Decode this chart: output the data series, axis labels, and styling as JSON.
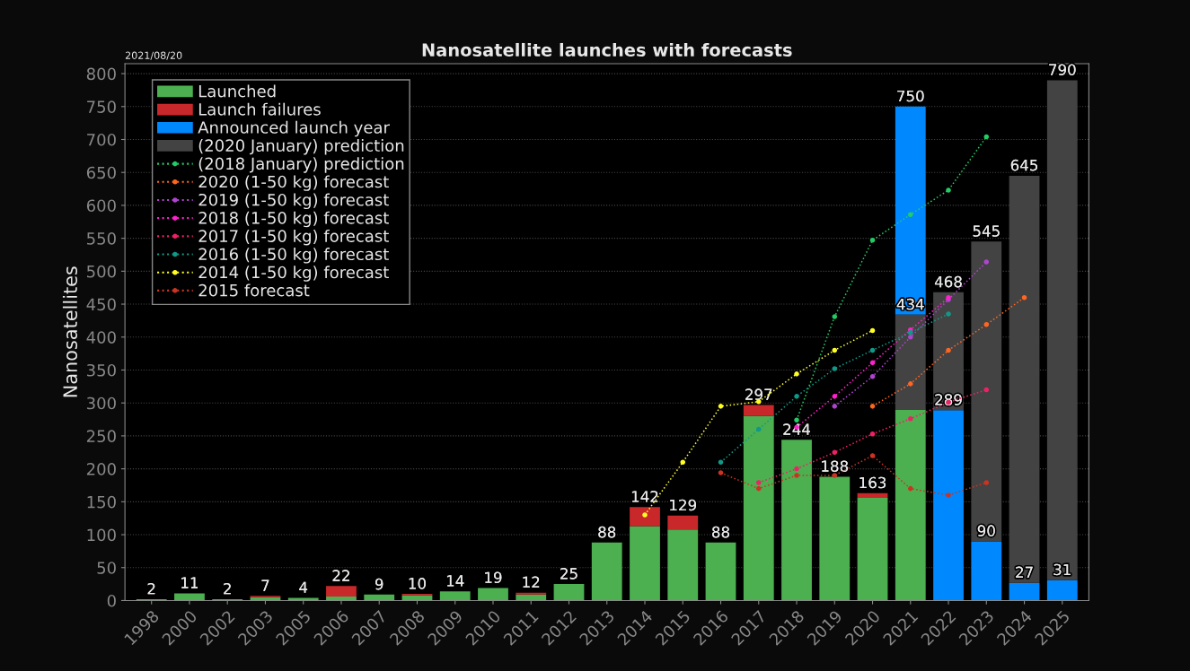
{
  "chart_data": {
    "type": "bar",
    "title": "Nanosatellite launches with forecasts",
    "ylabel": "Nanosatellites",
    "annotations": [
      "2021/08/20"
    ],
    "categories": [
      "1998",
      "2000",
      "2002",
      "2003",
      "2005",
      "2006",
      "2007",
      "2008",
      "2009",
      "2010",
      "2011",
      "2012",
      "2013",
      "2014",
      "2015",
      "2016",
      "2017",
      "2018",
      "2019",
      "2020",
      "2021",
      "2022",
      "2023",
      "2024",
      "2025"
    ],
    "ylim": [
      0,
      815
    ],
    "yticks": [
      0,
      50,
      100,
      150,
      200,
      250,
      300,
      350,
      400,
      450,
      500,
      550,
      600,
      650,
      700,
      750,
      800
    ],
    "grid": "y",
    "legend": "top left",
    "series": [
      {
        "name": "Launched",
        "color": "#4caf50",
        "values": [
          2,
          11,
          2,
          5,
          4,
          6,
          9,
          8,
          14,
          19,
          9,
          25,
          88,
          113,
          108,
          88,
          280,
          244,
          188,
          156,
          290,
          null,
          null,
          null,
          null
        ],
        "base": [
          0,
          0,
          0,
          0,
          0,
          0,
          0,
          0,
          0,
          0,
          0,
          0,
          0,
          0,
          0,
          0,
          0,
          0,
          0,
          0,
          0,
          null,
          null,
          null,
          null
        ],
        "value_labels": [
          "2",
          "11",
          "2",
          null,
          "4",
          null,
          "9",
          null,
          "14",
          "19",
          null,
          "25",
          "88",
          null,
          null,
          "88",
          null,
          "244",
          "188",
          null,
          null,
          null,
          null,
          null,
          null
        ]
      },
      {
        "name": "Launch failures",
        "color": "#c8282a",
        "values": [
          null,
          null,
          null,
          2,
          null,
          16,
          null,
          2,
          null,
          null,
          3,
          null,
          null,
          29,
          21,
          null,
          17,
          null,
          null,
          7,
          null,
          null,
          null,
          null,
          null
        ],
        "base": [
          null,
          null,
          null,
          5,
          null,
          6,
          null,
          8,
          null,
          null,
          9,
          null,
          null,
          113,
          108,
          null,
          280,
          null,
          null,
          156,
          null,
          null,
          null,
          null,
          null
        ],
        "value_labels": [
          null,
          null,
          null,
          "7",
          null,
          "22",
          null,
          "10",
          null,
          null,
          "12",
          null,
          null,
          "142",
          "129",
          null,
          "297",
          null,
          null,
          "163",
          null,
          null,
          null,
          null,
          null
        ]
      },
      {
        "name": "Announced launch year",
        "color": "#0088ff",
        "values": [
          null,
          null,
          null,
          null,
          null,
          null,
          null,
          null,
          null,
          null,
          null,
          null,
          null,
          null,
          null,
          null,
          null,
          null,
          null,
          null,
          316,
          289,
          90,
          27,
          31
        ],
        "base": [
          null,
          null,
          null,
          null,
          null,
          null,
          null,
          null,
          null,
          null,
          null,
          null,
          null,
          null,
          null,
          null,
          null,
          null,
          null,
          null,
          434,
          0,
          0,
          0,
          0
        ],
        "value_labels": [
          null,
          null,
          null,
          null,
          null,
          null,
          null,
          null,
          null,
          null,
          null,
          null,
          null,
          null,
          null,
          null,
          null,
          null,
          null,
          null,
          "750",
          "289",
          "90",
          "27",
          "31"
        ]
      },
      {
        "name": "(2020 January) prediction",
        "color": "#434343",
        "values": [
          null,
          null,
          null,
          null,
          null,
          null,
          null,
          null,
          null,
          null,
          null,
          null,
          null,
          null,
          null,
          null,
          null,
          null,
          null,
          null,
          144,
          179,
          455,
          618,
          759
        ],
        "base": [
          null,
          null,
          null,
          null,
          null,
          null,
          null,
          null,
          null,
          null,
          null,
          null,
          null,
          null,
          null,
          null,
          null,
          null,
          null,
          null,
          290,
          289,
          90,
          27,
          31
        ],
        "value_labels": [
          null,
          null,
          null,
          null,
          null,
          null,
          null,
          null,
          null,
          null,
          null,
          null,
          null,
          null,
          null,
          null,
          null,
          null,
          null,
          null,
          "434",
          "468",
          "545",
          "645",
          "790"
        ]
      },
      {
        "type": "line",
        "name": "(2018 January) prediction",
        "color": "#22cc66",
        "values": [
          null,
          null,
          null,
          null,
          null,
          null,
          null,
          null,
          null,
          null,
          null,
          null,
          null,
          null,
          null,
          null,
          null,
          274,
          431,
          547,
          586,
          623,
          704,
          null,
          null
        ]
      },
      {
        "type": "line",
        "name": "2020 (1-50 kg) forecast",
        "color": "#ff6622",
        "values": [
          null,
          null,
          null,
          null,
          null,
          null,
          null,
          null,
          null,
          null,
          null,
          null,
          null,
          null,
          null,
          null,
          null,
          null,
          null,
          295,
          329,
          380,
          419,
          460,
          null
        ]
      },
      {
        "type": "line",
        "name": "2019 (1-50 kg) forecast",
        "color": "#b044d0",
        "values": [
          null,
          null,
          null,
          null,
          null,
          null,
          null,
          null,
          null,
          null,
          null,
          null,
          null,
          null,
          null,
          null,
          null,
          null,
          295,
          340,
          400,
          457,
          514,
          null,
          null
        ]
      },
      {
        "type": "line",
        "name": "2018 (1-50 kg) forecast",
        "color": "#ff22cc",
        "values": [
          null,
          null,
          null,
          null,
          null,
          null,
          null,
          null,
          null,
          null,
          null,
          null,
          null,
          null,
          null,
          null,
          null,
          263,
          310,
          361,
          411,
          460,
          null,
          null,
          null
        ]
      },
      {
        "type": "line",
        "name": "2017 (1-50 kg) forecast",
        "color": "#ee2266",
        "values": [
          null,
          null,
          null,
          null,
          null,
          null,
          null,
          null,
          null,
          null,
          null,
          null,
          null,
          null,
          null,
          null,
          179,
          200,
          225,
          253,
          276,
          301,
          320,
          null,
          null
        ]
      },
      {
        "type": "line",
        "name": "2016 (1-50 kg) forecast",
        "color": "#119988",
        "values": [
          null,
          null,
          null,
          null,
          null,
          null,
          null,
          null,
          null,
          null,
          null,
          null,
          null,
          null,
          null,
          210,
          260,
          310,
          352,
          380,
          407,
          435,
          null,
          null,
          null
        ]
      },
      {
        "type": "line",
        "name": "2014 (1-50 kg) forecast",
        "color": "#ffff22",
        "values": [
          null,
          null,
          null,
          null,
          null,
          null,
          null,
          null,
          null,
          null,
          null,
          null,
          null,
          130,
          210,
          295,
          302,
          344,
          380,
          410,
          null,
          null,
          null,
          null,
          null
        ]
      },
      {
        "type": "line",
        "name": "2015 forecast",
        "color": "#cc3322",
        "values": [
          null,
          null,
          null,
          null,
          null,
          null,
          null,
          null,
          null,
          null,
          null,
          null,
          null,
          null,
          null,
          194,
          170,
          190,
          190,
          220,
          170,
          160,
          179,
          null,
          null
        ]
      }
    ],
    "marker": "circle",
    "line_style": "dotted"
  }
}
